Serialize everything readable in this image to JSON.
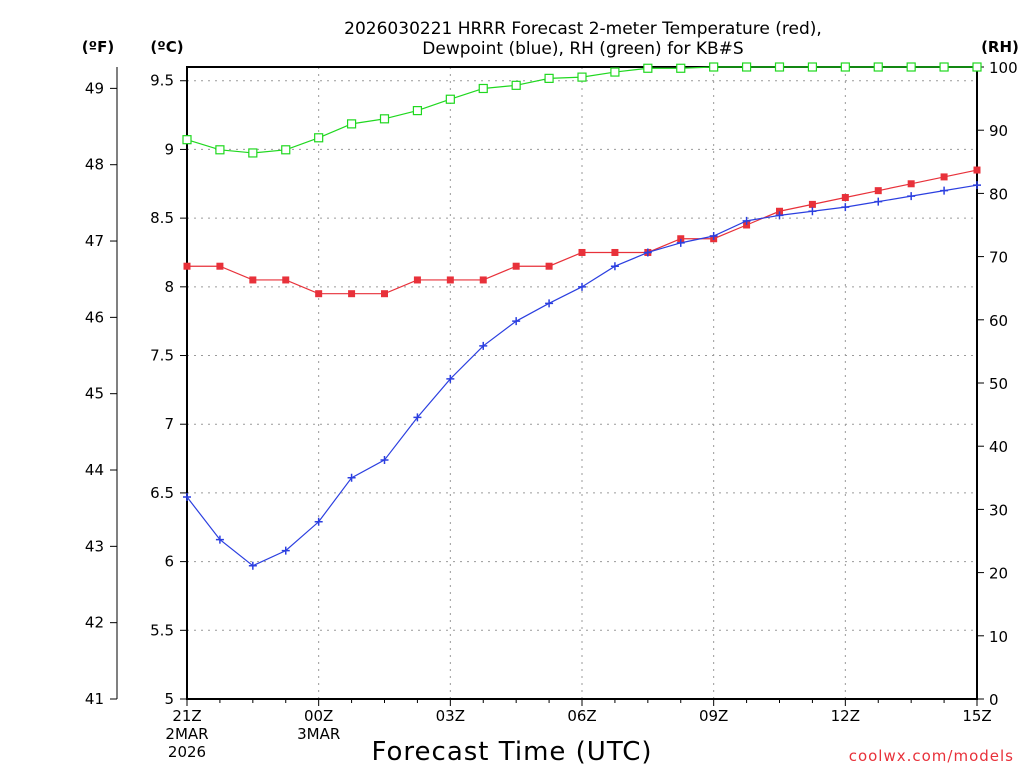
{
  "chart_data": {
    "type": "line",
    "title_line1": "2026030221 HRRR Forecast 2-meter Temperature (red),",
    "title_line2": "Dewpoint (blue), RH (green) for KB#S",
    "xlabel": "Forecast Time (UTC)",
    "credit": "coolwx.com/models",
    "left_unit_f": "(ºF)",
    "left_unit_c": "(ºC)",
    "right_unit": "(RH)",
    "x_hours": [
      0,
      24
    ],
    "ylim_c": [
      5,
      9.6
    ],
    "ylim_f": [
      41,
      49.28
    ],
    "ylim_rh": [
      0,
      100
    ],
    "f_ticks": [
      "41",
      "42",
      "43",
      "44",
      "45",
      "46",
      "47",
      "48",
      "49"
    ],
    "c_ticks": [
      "5",
      "5.5",
      "6",
      "6.5",
      "7",
      "7.5",
      "8",
      "8.5",
      "9",
      "9.5"
    ],
    "rh_ticks": [
      "0",
      "10",
      "20",
      "30",
      "40",
      "50",
      "60",
      "70",
      "80",
      "90",
      "100"
    ],
    "x_ticks": [
      {
        "hour": 0,
        "label": "21Z",
        "sub1": "2MAR",
        "sub2": "2026"
      },
      {
        "hour": 4,
        "label": "00Z",
        "sub1": "3MAR",
        "sub2": ""
      },
      {
        "hour": 8,
        "label": "03Z",
        "sub1": "",
        "sub2": ""
      },
      {
        "hour": 12,
        "label": "06Z",
        "sub1": "",
        "sub2": ""
      },
      {
        "hour": 16,
        "label": "09Z",
        "sub1": "",
        "sub2": ""
      },
      {
        "hour": 20,
        "label": "12Z",
        "sub1": "",
        "sub2": ""
      },
      {
        "hour": 24,
        "label": "15Z",
        "sub1": "",
        "sub2": ""
      }
    ],
    "series": [
      {
        "name": "Temperature",
        "axis": "c",
        "color": "#e8313a",
        "marker": "filled-square",
        "x": [
          0,
          1,
          2,
          3,
          4,
          5,
          6,
          7,
          8,
          9,
          10,
          11,
          12,
          13,
          14,
          15,
          16,
          17,
          18,
          19,
          20,
          21,
          22,
          23,
          24
        ],
        "values": [
          8.15,
          8.15,
          8.05,
          8.05,
          7.95,
          7.95,
          7.95,
          8.05,
          8.05,
          8.05,
          8.15,
          8.15,
          8.25,
          8.25,
          8.25,
          8.35,
          8.35,
          8.45,
          8.55,
          8.6,
          8.65,
          8.7,
          8.75,
          8.8,
          8.85
        ]
      },
      {
        "name": "Dewpoint",
        "axis": "c",
        "color": "#2b3fe0",
        "marker": "plus",
        "x": [
          0,
          1,
          2,
          3,
          4,
          5,
          6,
          7,
          8,
          9,
          10,
          11,
          12,
          13,
          14,
          15,
          16,
          17,
          18,
          19,
          20,
          21,
          22,
          23,
          24
        ],
        "values": [
          6.47,
          6.16,
          5.97,
          6.08,
          6.29,
          6.61,
          6.74,
          7.05,
          7.33,
          7.57,
          7.75,
          7.88,
          8.0,
          8.15,
          8.25,
          8.32,
          8.37,
          8.48,
          8.52,
          8.55,
          8.58,
          8.62,
          8.66,
          8.7,
          8.74
        ]
      },
      {
        "name": "RH",
        "axis": "rh",
        "color": "#1fd81f",
        "marker": "open-square",
        "x": [
          0,
          1,
          2,
          3,
          4,
          5,
          6,
          7,
          8,
          9,
          10,
          11,
          12,
          13,
          14,
          15,
          16,
          17,
          18,
          19,
          20,
          21,
          22,
          23,
          24
        ],
        "values": [
          88.5,
          86.9,
          86.4,
          86.9,
          88.8,
          91.0,
          91.8,
          93.1,
          94.9,
          96.6,
          97.1,
          98.2,
          98.4,
          99.2,
          99.8,
          99.8,
          100,
          100,
          100,
          100,
          100,
          100,
          100,
          100,
          100
        ]
      }
    ]
  }
}
